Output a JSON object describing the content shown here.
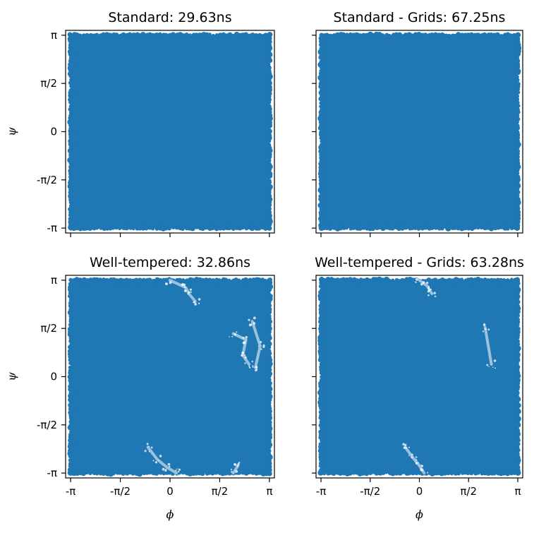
{
  "chart_data": [
    {
      "type": "scatter",
      "title": "Standard: 29.63ns",
      "xlabel": "",
      "ylabel": "ψ",
      "xlim": [
        -3.3,
        3.3
      ],
      "ylim": [
        -3.3,
        3.3
      ],
      "point_color": "#1f77b4",
      "coverage": "dense uniform sampling of the full [-π, π] × [-π, π] domain",
      "gaps": []
    },
    {
      "type": "scatter",
      "title": "Standard - Grids: 67.25ns",
      "xlabel": "",
      "ylabel": "",
      "xlim": [
        -3.3,
        3.3
      ],
      "ylim": [
        -3.3,
        3.3
      ],
      "point_color": "#1f77b4",
      "coverage": "dense uniform sampling of the full [-π, π] × [-π, π] domain",
      "gaps": []
    },
    {
      "type": "scatter",
      "title": "Well-tempered: 32.86ns",
      "xlabel": "ϕ",
      "ylabel": "ψ",
      "xlim": [
        -3.3,
        3.3
      ],
      "ylim": [
        -3.3,
        3.3
      ],
      "point_color": "#1f77b4",
      "coverage": "dense sampling with sparse regions",
      "gaps": [
        {
          "x": [
            0.0,
            0.5,
            0.6,
            0.8
          ],
          "y": [
            3.14,
            2.9,
            2.7,
            2.45
          ]
        },
        {
          "x": [
            -0.7,
            -0.4,
            -0.1,
            0.2
          ],
          "y": [
            -2.3,
            -2.7,
            -2.95,
            -3.14
          ]
        },
        {
          "x": [
            2.0,
            2.4,
            2.3,
            2.5
          ],
          "y": [
            1.4,
            1.2,
            0.7,
            0.4
          ]
        },
        {
          "x": [
            2.6,
            2.85,
            2.7
          ],
          "y": [
            1.8,
            1.0,
            0.3
          ]
        },
        {
          "x": [
            2.0,
            2.15
          ],
          "y": [
            -3.14,
            -2.9
          ]
        }
      ]
    },
    {
      "type": "scatter",
      "title": "Well-tempered - Grids: 63.28ns",
      "xlabel": "ϕ",
      "ylabel": "",
      "xlim": [
        -3.3,
        3.3
      ],
      "ylim": [
        -3.3,
        3.3
      ],
      "point_color": "#1f77b4",
      "coverage": "dense sampling with sparse regions",
      "gaps": [
        {
          "x": [
            0.0,
            0.25,
            0.4
          ],
          "y": [
            3.14,
            2.95,
            2.7
          ]
        },
        {
          "x": [
            -0.45,
            -0.2,
            0.0,
            0.15
          ],
          "y": [
            -2.3,
            -2.65,
            -2.9,
            -3.14
          ]
        },
        {
          "x": [
            2.1,
            2.3
          ],
          "y": [
            1.6,
            0.4
          ]
        }
      ]
    }
  ],
  "axes": {
    "ticks": [
      {
        "value": -3.14159,
        "label": "-π"
      },
      {
        "value": -1.5708,
        "label": "-π/2"
      },
      {
        "value": 0,
        "label": "0"
      },
      {
        "value": 1.5708,
        "label": "π/2"
      },
      {
        "value": 3.14159,
        "label": "π"
      }
    ]
  }
}
